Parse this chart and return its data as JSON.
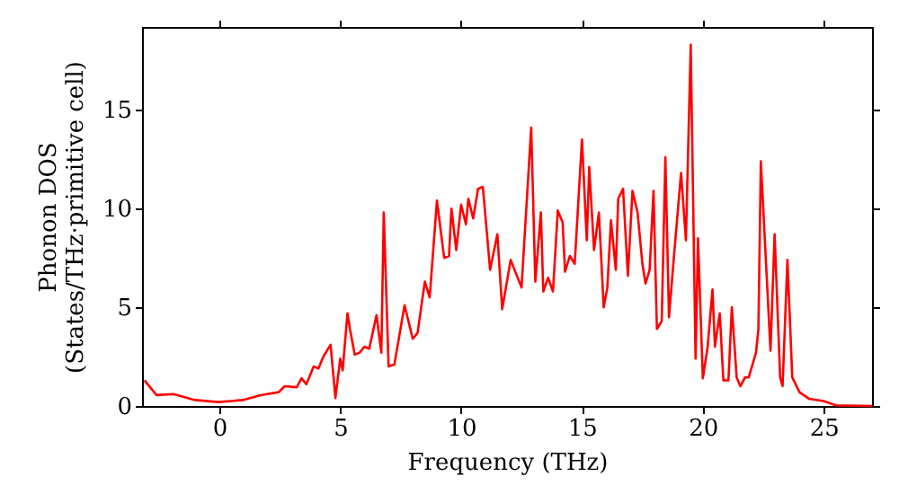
{
  "chart_data": {
    "type": "line",
    "xlabel": "Frequency (THz)",
    "ylabel": "Phonon DOS\n(States/THz·primitive cell)",
    "xlim": [
      -3.2,
      27
    ],
    "ylim": [
      0,
      19.2
    ],
    "xticks": [
      0,
      5,
      10,
      15,
      20,
      25
    ],
    "yticks": [
      0,
      5,
      10,
      15
    ],
    "grid": false,
    "marker": "none",
    "line_style": "solid",
    "series": [
      {
        "color": "#ff0000",
        "x": [
          -3.1,
          -2.6,
          -1.9,
          -1.0,
          -0.04,
          0.96,
          1.7,
          2.45,
          2.7,
          3.2,
          3.4,
          3.6,
          3.9,
          4.1,
          4.3,
          4.6,
          4.8,
          5.0,
          5.1,
          5.3,
          5.4,
          5.6,
          5.8,
          6.0,
          6.2,
          6.5,
          6.7,
          6.8,
          7.0,
          7.24,
          7.66,
          8.0,
          8.2,
          8.5,
          8.7,
          9.0,
          9.3,
          9.5,
          9.6,
          9.8,
          10.0,
          10.2,
          10.3,
          10.5,
          10.7,
          10.9,
          11.2,
          11.5,
          11.7,
          12.05,
          12.5,
          12.9,
          13.07,
          13.3,
          13.4,
          13.6,
          13.8,
          14.0,
          14.2,
          14.3,
          14.5,
          14.7,
          15.0,
          15.2,
          15.3,
          15.5,
          15.7,
          15.9,
          16.05,
          16.2,
          16.4,
          16.5,
          16.7,
          16.9,
          17.09,
          17.3,
          17.5,
          17.63,
          17.8,
          17.96,
          18.1,
          18.3,
          18.45,
          18.6,
          18.8,
          19.1,
          19.3,
          19.5,
          19.7,
          19.8,
          20.0,
          20.2,
          20.4,
          20.5,
          20.7,
          20.85,
          21.06,
          21.2,
          21.4,
          21.55,
          21.75,
          21.9,
          22.2,
          22.3,
          22.4,
          22.8,
          22.97,
          23.2,
          23.3,
          23.5,
          23.7,
          24.0,
          24.4,
          25.0,
          25.5,
          27.0
        ],
        "values": [
          1.3,
          0.55,
          0.6,
          0.3,
          0.2,
          0.3,
          0.55,
          0.7,
          1.0,
          0.95,
          1.4,
          1.1,
          2.0,
          1.9,
          2.5,
          3.1,
          0.4,
          2.4,
          1.8,
          4.7,
          3.9,
          2.6,
          2.7,
          3.0,
          2.9,
          4.6,
          2.7,
          9.8,
          2.0,
          2.1,
          5.1,
          3.4,
          3.7,
          6.3,
          5.5,
          10.4,
          7.5,
          7.6,
          10.0,
          7.9,
          10.2,
          9.2,
          10.5,
          9.5,
          11.0,
          11.1,
          6.9,
          8.7,
          4.9,
          7.4,
          6.0,
          14.1,
          6.3,
          9.8,
          5.8,
          6.5,
          5.8,
          9.9,
          9.3,
          6.8,
          7.6,
          7.2,
          13.5,
          8.4,
          12.1,
          7.9,
          9.8,
          5.0,
          6.0,
          9.4,
          6.9,
          10.5,
          11.0,
          6.6,
          10.9,
          9.8,
          7.2,
          6.2,
          6.9,
          10.9,
          3.9,
          4.3,
          12.6,
          4.5,
          7.5,
          11.8,
          8.4,
          18.3,
          2.4,
          8.5,
          1.4,
          3.0,
          5.9,
          3.0,
          4.7,
          1.3,
          1.3,
          5.0,
          1.45,
          1.0,
          1.45,
          1.45,
          2.7,
          3.9,
          12.4,
          2.8,
          8.7,
          1.45,
          1.0,
          7.4,
          1.45,
          0.7,
          0.36,
          0.25,
          0.03,
          0.0
        ]
      }
    ]
  }
}
